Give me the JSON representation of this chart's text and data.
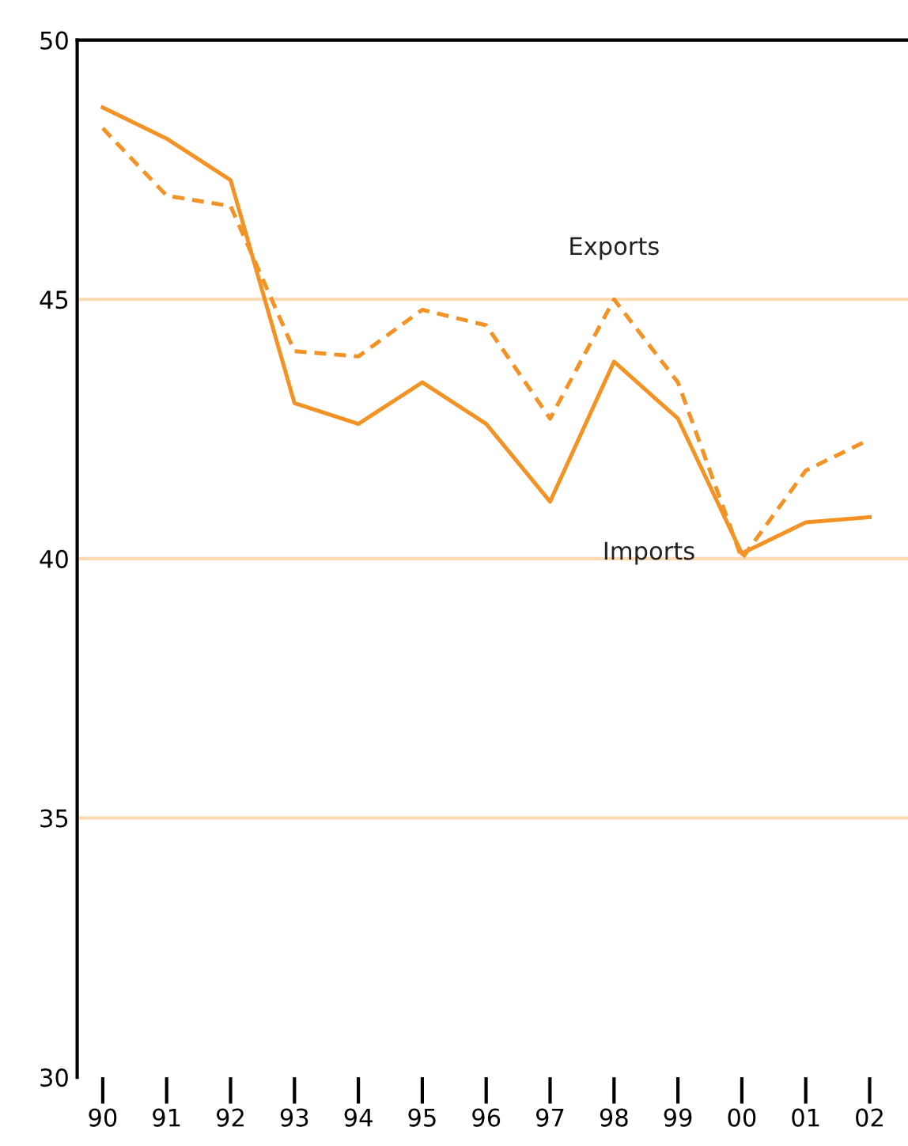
{
  "chart_data": {
    "type": "line",
    "categories": [
      "90",
      "91",
      "92",
      "93",
      "94",
      "95",
      "96",
      "97",
      "98",
      "99",
      "00",
      "01",
      "02"
    ],
    "series": [
      {
        "name": "Exports",
        "color": "#f39325",
        "line_style": "dashed",
        "values": [
          48.3,
          47.0,
          46.8,
          44.0,
          43.9,
          44.8,
          44.5,
          42.7,
          45.0,
          43.4,
          40.0,
          41.7,
          42.3
        ]
      },
      {
        "name": "Imports",
        "color": "#f39325",
        "line_style": "solid",
        "values": [
          48.7,
          48.1,
          47.3,
          43.0,
          42.6,
          43.4,
          42.6,
          41.1,
          43.8,
          42.7,
          40.1,
          40.7,
          40.8
        ]
      }
    ],
    "ylim": [
      30,
      50
    ],
    "yticks": [
      30,
      35,
      40,
      45,
      50
    ],
    "grid": "y",
    "legend": false,
    "marker": "none"
  }
}
